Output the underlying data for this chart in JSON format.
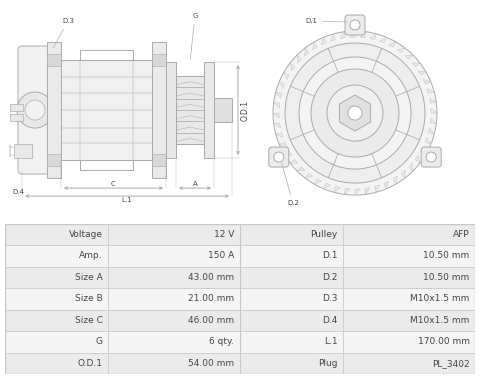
{
  "table_rows": [
    [
      "Voltage",
      "12 V",
      "Pulley",
      "AFP"
    ],
    [
      "Amp.",
      "150 A",
      "D.1",
      "10.50 mm"
    ],
    [
      "Size A",
      "43.00 mm",
      "D.2",
      "10.50 mm"
    ],
    [
      "Size B",
      "21.00 mm",
      "D.3",
      "M10x1.5 mm"
    ],
    [
      "Size C",
      "46.00 mm",
      "D.4",
      "M10x1.5 mm"
    ],
    [
      "G",
      "6 qty.",
      "L.1",
      "170.00 mm"
    ],
    [
      "O.D.1",
      "54.00 mm",
      "Plug",
      "PL_3402"
    ]
  ],
  "row_bg_even": "#ebebeb",
  "row_bg_odd": "#f5f5f5",
  "border_color": "#c8c8c8",
  "text_color": "#444444",
  "line_color": "#aaaaaa",
  "lw": 0.7,
  "draw_bg": "#ffffff"
}
